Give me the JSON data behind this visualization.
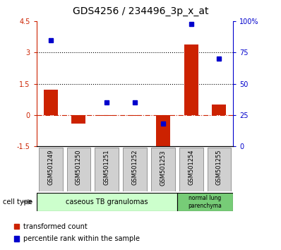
{
  "title": "GDS4256 / 234496_3p_x_at",
  "samples": [
    "GSM501249",
    "GSM501250",
    "GSM501251",
    "GSM501252",
    "GSM501253",
    "GSM501254",
    "GSM501255"
  ],
  "transformed_count": [
    1.2,
    -0.4,
    -0.05,
    -0.05,
    -1.6,
    3.4,
    0.5
  ],
  "percentile_rank": [
    85,
    null,
    35,
    35,
    18,
    98,
    70
  ],
  "ylim_left": [
    -1.5,
    4.5
  ],
  "ylim_right": [
    0,
    100
  ],
  "yticks_left": [
    -1.5,
    0,
    1.5,
    3,
    4.5
  ],
  "yticks_right": [
    0,
    25,
    50,
    75,
    100
  ],
  "ytick_labels_left": [
    "-1.5",
    "0",
    "1.5",
    "3",
    "4.5"
  ],
  "ytick_labels_right": [
    "0",
    "25",
    "50",
    "75",
    "100%"
  ],
  "hlines_dotted": [
    1.5,
    3.0
  ],
  "hline_dashdot": 0,
  "bar_color": "#cc2200",
  "scatter_color": "#0000cc",
  "group1_label": "caseous TB granulomas",
  "group1_color": "#ccffcc",
  "group2_label": "normal lung\nparenchyma",
  "group2_color": "#77cc77",
  "cell_type_label": "cell type",
  "legend_bar_label": "transformed count",
  "legend_scatter_label": "percentile rank within the sample",
  "title_fontsize": 10,
  "tick_fontsize": 7,
  "sample_fontsize": 6,
  "group_fontsize": 7,
  "legend_fontsize": 7
}
